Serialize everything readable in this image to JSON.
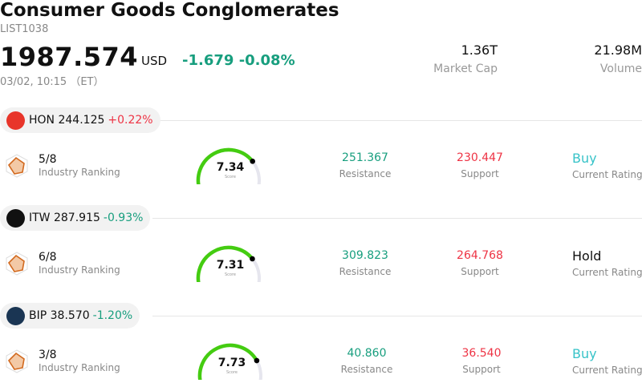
{
  "header": {
    "title": "Consumer Goods Conglomerates",
    "code": "LIST1038",
    "price": "1987.574",
    "currency": "USD",
    "change": "-1.679",
    "change_pct": "-0.08%",
    "timestamp": "03/02, 10:15 （ET）",
    "market_cap_value": "1.36T",
    "market_cap_label": "Market Cap",
    "volume_value": "21.98M",
    "volume_label": "Volume"
  },
  "colors": {
    "positive": "#ee3344",
    "negative": "#179e7e",
    "buy": "#37c3c8",
    "gauge_fill": "#44cc11",
    "gauge_track": "#e6e6ee"
  },
  "stocks": [
    {
      "ticker": "HON",
      "price": "244.125",
      "change_pct": "+0.22%",
      "direction": "up",
      "logo_text": "Honeywell",
      "logo_color": "#e8352a",
      "rank": "5/8",
      "rank_label": "Industry Ranking",
      "score": "7.34",
      "score_label": "Score",
      "score_fraction": 0.734,
      "resistance": "251.367",
      "resistance_label": "Resistance",
      "support": "230.447",
      "support_label": "Support",
      "rating": "Buy",
      "rating_type": "buy",
      "rating_label": "Current Rating"
    },
    {
      "ticker": "ITW",
      "price": "287.915",
      "change_pct": "-0.93%",
      "direction": "down",
      "logo_text": "ITW",
      "logo_color": "#111111",
      "rank": "6/8",
      "rank_label": "Industry Ranking",
      "score": "7.31",
      "score_label": "Score",
      "score_fraction": 0.731,
      "resistance": "309.823",
      "resistance_label": "Resistance",
      "support": "264.768",
      "support_label": "Support",
      "rating": "Hold",
      "rating_type": "hold",
      "rating_label": "Current Rating"
    },
    {
      "ticker": "BIP",
      "price": "38.570",
      "change_pct": "-1.20%",
      "direction": "down",
      "logo_text": "Brookfield",
      "logo_color": "#1a3553",
      "rank": "3/8",
      "rank_label": "Industry Ranking",
      "score": "7.73",
      "score_label": "Score",
      "score_fraction": 0.773,
      "resistance": "40.860",
      "resistance_label": "Resistance",
      "support": "36.540",
      "support_label": "Support",
      "rating": "Buy",
      "rating_type": "buy",
      "rating_label": "Current Rating"
    }
  ]
}
